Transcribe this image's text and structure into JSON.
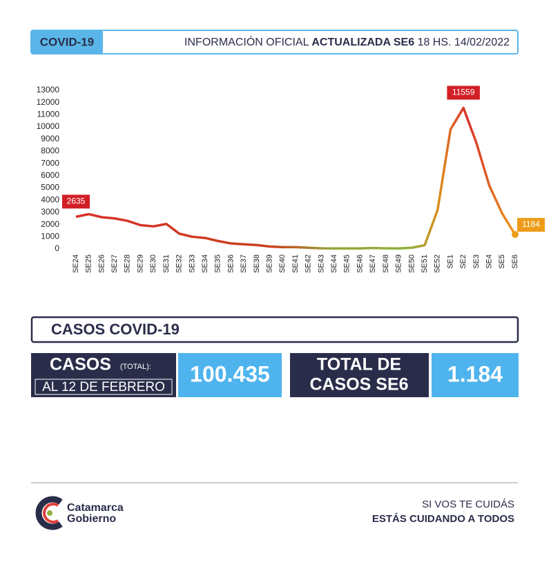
{
  "header": {
    "tag": "COVID-19",
    "info_prefix": "INFORMACIÓN OFICIAL",
    "info_bold": "ACTUALIZADA SE6",
    "info_suffix": "18 HS. 14/02/2022"
  },
  "chart_data": {
    "type": "line",
    "categories": [
      "SE24",
      "SE25",
      "SE26",
      "SE27",
      "SE28",
      "SE29",
      "SE30",
      "SE31",
      "SE32",
      "SE33",
      "SE34",
      "SE35",
      "SE36",
      "SE37",
      "SE38",
      "SE39",
      "SE40",
      "SE41",
      "SE42",
      "SE43",
      "SE44",
      "SE45",
      "SE46",
      "SE47",
      "SE48",
      "SE49",
      "SE50",
      "SE51",
      "SE52",
      "SE1",
      "SE2",
      "SE3",
      "SE4",
      "SE5",
      "SE6"
    ],
    "values": [
      2635,
      2850,
      2600,
      2500,
      2300,
      1950,
      1850,
      2050,
      1250,
      1000,
      900,
      650,
      450,
      380,
      320,
      200,
      150,
      150,
      100,
      50,
      40,
      40,
      40,
      80,
      50,
      40,
      100,
      300,
      3200,
      9800,
      11559,
      8700,
      5200,
      2900,
      1184
    ],
    "ylim": [
      0,
      13000
    ],
    "yticks": [
      0,
      1000,
      2000,
      3000,
      4000,
      5000,
      6000,
      7000,
      8000,
      9000,
      10000,
      11000,
      12000,
      13000
    ]
  },
  "summary": {
    "title": "CASOS COVID-19",
    "casos_label": "CASOS",
    "total_note": "(TOTAL):",
    "date": "AL 12 DE FEBRERO",
    "total": "100.435",
    "se6_label_1": "TOTAL DE",
    "se6_label_2": "CASOS SE6",
    "se6_total": "1.184"
  },
  "footer": {
    "brand_1": "Catamarca",
    "brand_2": "Gobierno",
    "slogan_1": "SI VOS TE CUIDÁS",
    "slogan_2": "ESTÁS CUIDANDO A TODOS"
  }
}
